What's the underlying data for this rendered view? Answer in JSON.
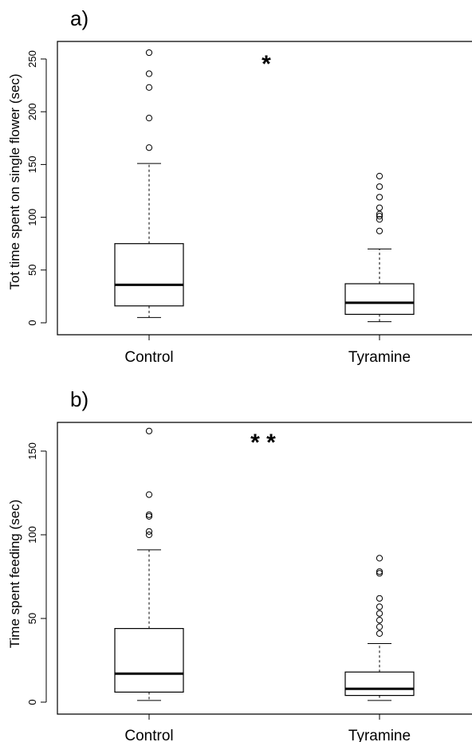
{
  "chart_data": [
    {
      "type": "box",
      "panel_label": "a)",
      "significance": "*",
      "xlabel": "",
      "ylabel": "Tot time spent on single flower (sec)",
      "ylim": [
        0,
        260
      ],
      "yticks": [
        0,
        50,
        100,
        150,
        200,
        250
      ],
      "categories": [
        "Control",
        "Tyramine"
      ],
      "boxes": [
        {
          "whisker_low": 5,
          "q1": 16,
          "median": 36,
          "q3": 75,
          "whisker_high": 151,
          "outliers": [
            166,
            194,
            223,
            236,
            256
          ]
        },
        {
          "whisker_low": 1,
          "q1": 8,
          "median": 19,
          "q3": 37,
          "whisker_high": 70,
          "outliers": [
            87,
            98,
            101,
            103,
            109,
            119,
            129,
            139
          ]
        }
      ]
    },
    {
      "type": "box",
      "panel_label": "b)",
      "significance": "* *",
      "xlabel": "",
      "ylabel": "Time spent feeding (sec)",
      "ylim": [
        0,
        165
      ],
      "yticks": [
        0,
        50,
        100,
        150
      ],
      "categories": [
        "Control",
        "Tyramine"
      ],
      "boxes": [
        {
          "whisker_low": 1,
          "q1": 6,
          "median": 17,
          "q3": 44,
          "whisker_high": 91,
          "outliers": [
            100,
            102,
            111,
            112,
            124,
            162
          ]
        },
        {
          "whisker_low": 1,
          "q1": 4,
          "median": 8,
          "q3": 18,
          "whisker_high": 35,
          "outliers": [
            41,
            45,
            49,
            53,
            57,
            62,
            77,
            78,
            86
          ]
        }
      ]
    }
  ]
}
